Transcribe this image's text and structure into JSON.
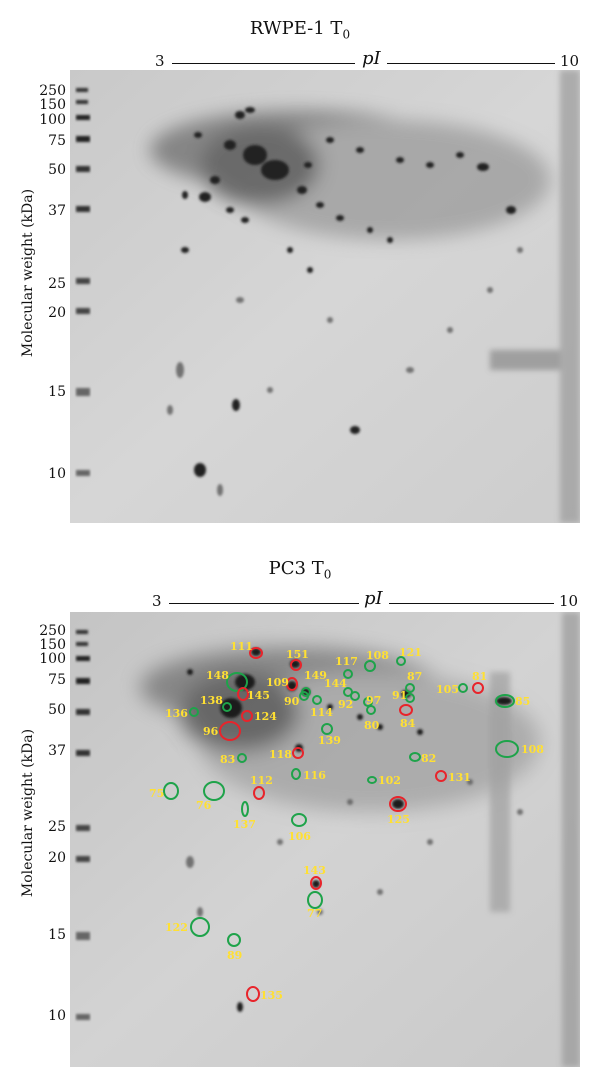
{
  "panels": [
    {
      "title": "RWPE-1 T",
      "title_sub": "0",
      "ph": {
        "left": "3",
        "mid": "pI",
        "right": "10"
      },
      "ylabel": "Molecular weight (kDa)",
      "mw_ticks": [
        "250",
        "150",
        "100",
        "75",
        "50",
        "37",
        "25",
        "20",
        "15",
        "10"
      ]
    },
    {
      "title": "PC3 T",
      "title_sub": "0",
      "ph": {
        "left": "3",
        "mid": "pI",
        "right": "10"
      },
      "ylabel": "Molecular weight (kDa)",
      "mw_ticks": [
        "250",
        "150",
        "100",
        "75",
        "50",
        "37",
        "25",
        "20",
        "15",
        "10"
      ],
      "spots": [
        {
          "id": "111",
          "color": "red"
        },
        {
          "id": "151",
          "color": "red"
        },
        {
          "id": "117",
          "color": "green"
        },
        {
          "id": "108",
          "color": "green"
        },
        {
          "id": "121",
          "color": "green"
        },
        {
          "id": "148",
          "color": "green"
        },
        {
          "id": "109",
          "color": "red"
        },
        {
          "id": "149",
          "color": "green"
        },
        {
          "id": "144",
          "color": "green"
        },
        {
          "id": "87",
          "color": "green"
        },
        {
          "id": "81",
          "color": "red"
        },
        {
          "id": "145",
          "color": "red"
        },
        {
          "id": "90",
          "color": "green"
        },
        {
          "id": "92",
          "color": "green"
        },
        {
          "id": "97",
          "color": "green"
        },
        {
          "id": "91",
          "color": "green"
        },
        {
          "id": "105",
          "color": "green"
        },
        {
          "id": "85",
          "color": "green"
        },
        {
          "id": "138",
          "color": "green"
        },
        {
          "id": "114",
          "color": "green"
        },
        {
          "id": "80",
          "color": "green"
        },
        {
          "id": "84",
          "color": "red"
        },
        {
          "id": "136",
          "color": "green"
        },
        {
          "id": "124",
          "color": "red"
        },
        {
          "id": "96",
          "color": "red"
        },
        {
          "id": "139",
          "color": "green"
        },
        {
          "id": "118",
          "color": "red"
        },
        {
          "id": "83",
          "color": "green"
        },
        {
          "id": "82",
          "color": "green"
        },
        {
          "id": "108",
          "color": "green"
        },
        {
          "id": "116",
          "color": "green"
        },
        {
          "id": "102",
          "color": "green"
        },
        {
          "id": "131",
          "color": "red"
        },
        {
          "id": "75",
          "color": "green"
        },
        {
          "id": "112",
          "color": "red"
        },
        {
          "id": "76",
          "color": "green"
        },
        {
          "id": "137",
          "color": "green"
        },
        {
          "id": "125",
          "color": "red"
        },
        {
          "id": "106",
          "color": "green"
        },
        {
          "id": "143",
          "color": "red"
        },
        {
          "id": "77",
          "color": "green"
        },
        {
          "id": "122",
          "color": "green"
        },
        {
          "id": "89",
          "color": "green"
        },
        {
          "id": "135",
          "color": "red"
        }
      ]
    }
  ],
  "colors": {
    "red_circle": "#e8242b",
    "green_circle": "#1ea34a",
    "label": "#ffe033"
  }
}
